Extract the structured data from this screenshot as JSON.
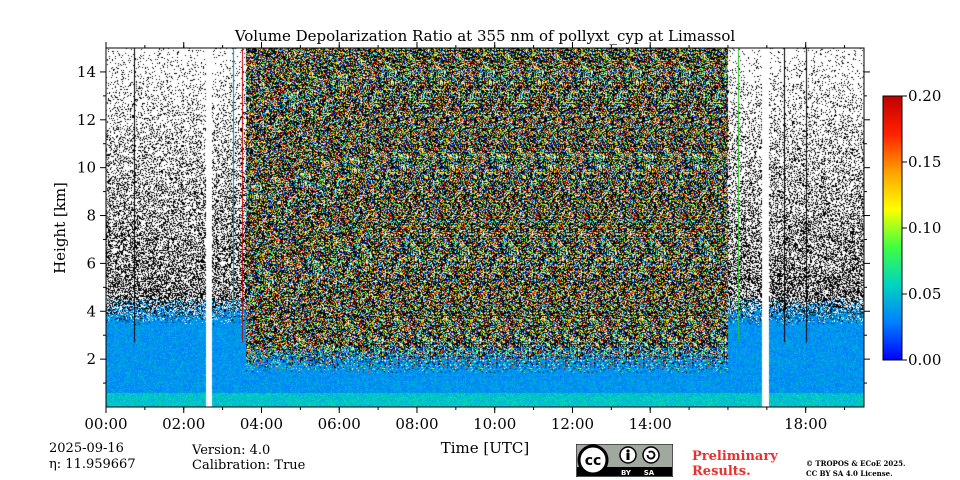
{
  "chart_data": {
    "type": "heatmap",
    "title": "Volume Depolarization Ratio at 355 nm of pollyxt_cyp at Limassol",
    "xlabel": "Time [UTC]",
    "ylabel": "Height [km]",
    "xlim_hours": [
      0,
      19.5
    ],
    "ylim_km": [
      0,
      15
    ],
    "x_ticks": [
      {
        "hour": 0,
        "label": "00:00"
      },
      {
        "hour": 2,
        "label": "02:00"
      },
      {
        "hour": 4,
        "label": "04:00"
      },
      {
        "hour": 6,
        "label": "06:00"
      },
      {
        "hour": 8,
        "label": "08:00"
      },
      {
        "hour": 10,
        "label": "10:00"
      },
      {
        "hour": 12,
        "label": "12:00"
      },
      {
        "hour": 14,
        "label": "14:00"
      },
      {
        "hour": 18,
        "label": "18:00"
      }
    ],
    "y_ticks": [
      {
        "km": 2,
        "label": "2"
      },
      {
        "km": 4,
        "label": "4"
      },
      {
        "km": 6,
        "label": "6"
      },
      {
        "km": 8,
        "label": "8"
      },
      {
        "km": 10,
        "label": "10"
      },
      {
        "km": 12,
        "label": "12"
      },
      {
        "km": 14,
        "label": "14"
      }
    ],
    "colorbar": {
      "range": [
        0.0,
        0.2
      ],
      "ticks": [
        {
          "value": 0.0,
          "label": "0.00"
        },
        {
          "value": 0.05,
          "label": "0.05"
        },
        {
          "value": 0.1,
          "label": "0.10"
        },
        {
          "value": 0.15,
          "label": "0.15"
        },
        {
          "value": 0.2,
          "label": "0.20"
        }
      ],
      "colormap": [
        "#0000ff",
        "#0080ff",
        "#00d4c0",
        "#40ff40",
        "#ffff00",
        "#ffa000",
        "#ff2000",
        "#c00000"
      ]
    },
    "data_gaps_hours": [
      [
        2.57,
        2.72
      ],
      [
        16.88,
        17.05
      ]
    ],
    "high_noise_period_hours": [
      3.6,
      16.0
    ],
    "aerosol_layer_top_km": 4.0,
    "outlier_lines": [
      {
        "hour": 0.72,
        "color": "#000000"
      },
      {
        "hour": 3.28,
        "color": "#009090"
      },
      {
        "hour": 3.5,
        "color": "#c00000"
      },
      {
        "hour": 16.25,
        "color": "#30c030"
      },
      {
        "hour": 17.45,
        "color": "#000000"
      },
      {
        "hour": 18.0,
        "color": "#000000"
      }
    ]
  },
  "meta": {
    "date": "2025-09-16",
    "eta": "η: 11.959667",
    "version": "Version: 4.0",
    "calibration": "Calibration: True"
  },
  "badge": {
    "cc_text": "cc",
    "by_text": "BY",
    "sa_text": "SA",
    "bg_color": "#a0a8a0"
  },
  "notice": {
    "line1": "Preliminary",
    "line2": "Results.",
    "color": "#e8302e"
  },
  "copyright": {
    "line1": "© TROPOS & ECoE 2025.",
    "line2": "CC BY SA 4.0 License."
  }
}
